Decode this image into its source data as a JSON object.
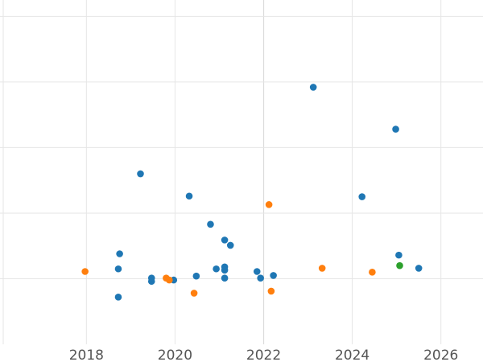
{
  "chart_data": {
    "type": "scatter",
    "title": "",
    "xlabel": "",
    "ylabel": "",
    "xlim": [
      2016.05,
      2026.95
    ],
    "ylim": [
      0,
      5.25
    ],
    "grid": true,
    "x_ticks": [
      2018,
      2020,
      2022,
      2024,
      2026
    ],
    "x_tick_labels": [
      "2018",
      "2020",
      "2022",
      "2024",
      "2026"
    ],
    "y_gridlines": [
      1,
      2,
      3,
      4,
      5
    ],
    "series": [
      {
        "color": "#1f77b4",
        "points": [
          {
            "x": 2018.72,
            "y": 0.72
          },
          {
            "x": 2018.72,
            "y": 1.15
          },
          {
            "x": 2018.75,
            "y": 1.38
          },
          {
            "x": 2019.22,
            "y": 2.6
          },
          {
            "x": 2019.47,
            "y": 0.96
          },
          {
            "x": 2019.47,
            "y": 1.01
          },
          {
            "x": 2019.97,
            "y": 0.98
          },
          {
            "x": 2020.32,
            "y": 2.26
          },
          {
            "x": 2020.48,
            "y": 1.04
          },
          {
            "x": 2020.8,
            "y": 1.83
          },
          {
            "x": 2020.93,
            "y": 1.15
          },
          {
            "x": 2021.12,
            "y": 1.18
          },
          {
            "x": 2021.12,
            "y": 1.13
          },
          {
            "x": 2021.12,
            "y": 1.59
          },
          {
            "x": 2021.12,
            "y": 1.01
          },
          {
            "x": 2021.25,
            "y": 1.51
          },
          {
            "x": 2021.85,
            "y": 1.11
          },
          {
            "x": 2021.93,
            "y": 1.01
          },
          {
            "x": 2022.22,
            "y": 1.05
          },
          {
            "x": 2023.12,
            "y": 3.92
          },
          {
            "x": 2024.22,
            "y": 2.25
          },
          {
            "x": 2024.98,
            "y": 3.28
          },
          {
            "x": 2025.05,
            "y": 1.36
          },
          {
            "x": 2025.5,
            "y": 1.16
          }
        ]
      },
      {
        "color": "#ff7f0e",
        "points": [
          {
            "x": 2017.97,
            "y": 1.11
          },
          {
            "x": 2019.8,
            "y": 1.01
          },
          {
            "x": 2019.87,
            "y": 0.98
          },
          {
            "x": 2020.43,
            "y": 0.78
          },
          {
            "x": 2022.12,
            "y": 2.13
          },
          {
            "x": 2022.17,
            "y": 0.81
          },
          {
            "x": 2023.32,
            "y": 1.16
          },
          {
            "x": 2024.45,
            "y": 1.1
          }
        ]
      },
      {
        "color": "#2ca02c",
        "points": [
          {
            "x": 2025.07,
            "y": 1.2
          }
        ]
      }
    ]
  }
}
